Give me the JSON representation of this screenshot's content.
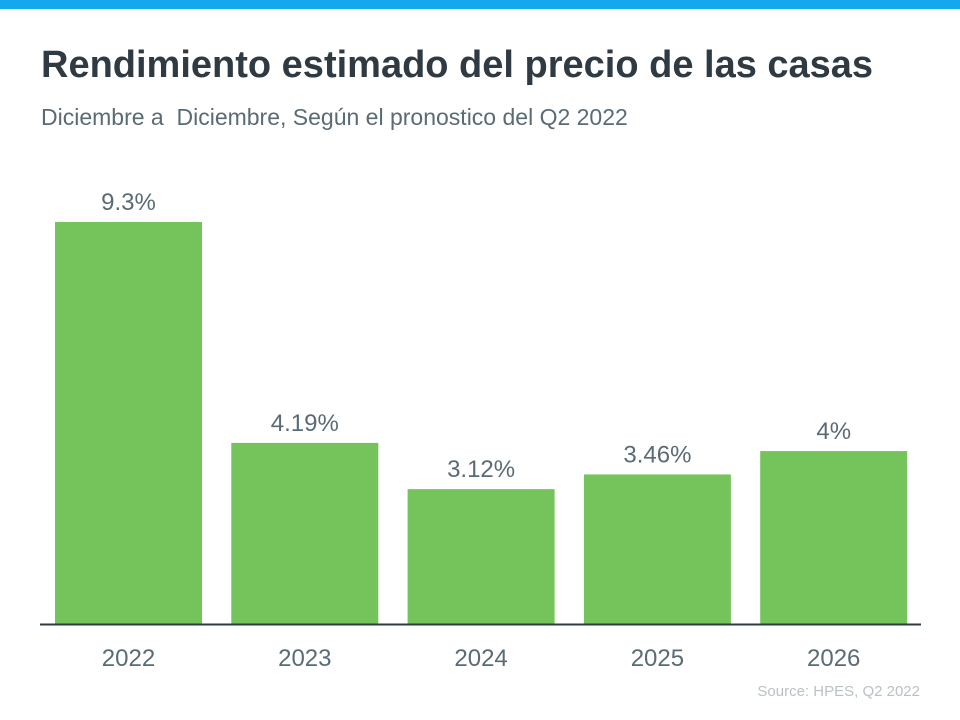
{
  "header": {
    "title": "Rendimiento estimado del precio de las casas",
    "subtitle": "Diciembre a  Diciembre, Según el pronostico del Q2 2022"
  },
  "chart_data": {
    "type": "bar",
    "categories": [
      "2022",
      "2023",
      "2024",
      "2025",
      "2026"
    ],
    "values": [
      9.3,
      4.19,
      3.12,
      3.46,
      4
    ],
    "data_labels": [
      "9.3%",
      "4.19%",
      "3.12%",
      "3.46%",
      "4%"
    ],
    "ylim": [
      0,
      9.3
    ],
    "grid": false,
    "bar_color": "#75c35b",
    "axis_color": "#2f3a43",
    "label_color": "#5b6b74"
  },
  "source": "Source: HPES, Q2 2022",
  "colors": {
    "accent": "#14a9ec"
  }
}
